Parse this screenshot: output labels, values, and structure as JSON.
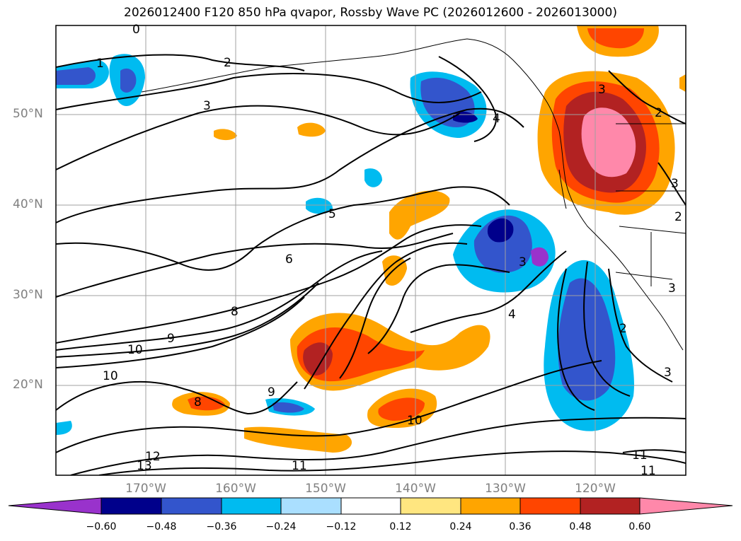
{
  "title": "2026012400 F120 850 hPa qvapor, Rossby Wave PC (2026012600 - 2026013000)",
  "lat_labels": [
    "50°N",
    "40°N",
    "30°N",
    "20°N"
  ],
  "lon_labels": [
    "170°W",
    "160°W",
    "150°W",
    "140°W",
    "130°W",
    "120°W"
  ],
  "colorbar": {
    "ticks": [
      "−0.60",
      "−0.48",
      "−0.36",
      "−0.24",
      "−0.12",
      "0.12",
      "0.24",
      "0.36",
      "0.48",
      "0.60"
    ],
    "colors": [
      "#9932cc",
      "#00008b",
      "#3355cc",
      "#00bbf0",
      "#aadfff",
      "#ffffff",
      "#ffe680",
      "#ffa500",
      "#ff4500",
      "#b22222",
      "#ff88aa"
    ]
  },
  "contour_labels": [
    "0",
    "1",
    "2",
    "3",
    "4",
    "5",
    "6",
    "8",
    "9",
    "10",
    "10",
    "3",
    "4",
    "2",
    "3",
    "3",
    "2",
    "3",
    "2",
    "8",
    "9",
    "10",
    "11",
    "11",
    "11",
    "12",
    "13",
    "3"
  ],
  "map": {
    "region": "North Pacific, 10°N–60°N, 180°W–110°W",
    "field": "850 hPa qvapor, Rossby Wave PC",
    "grid": true
  }
}
